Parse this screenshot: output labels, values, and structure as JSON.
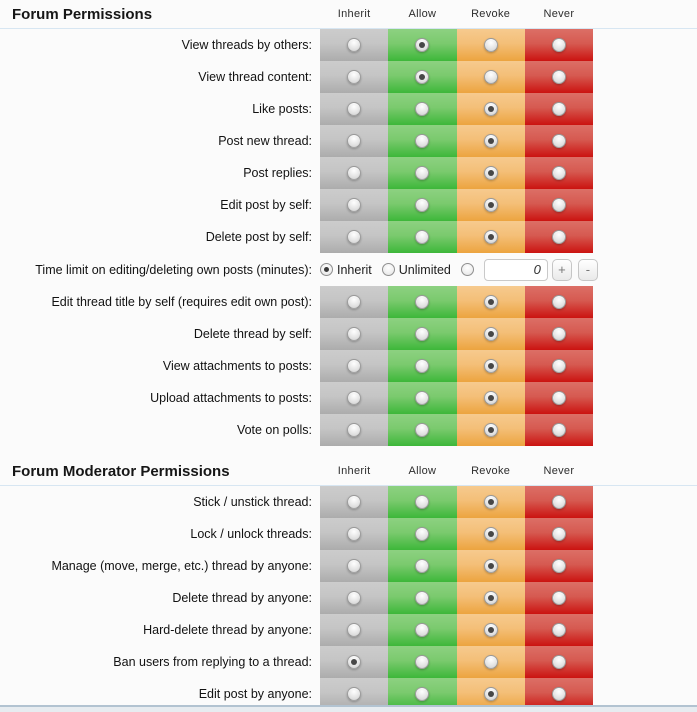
{
  "page": {
    "background": "#fbfbfb"
  },
  "columns": [
    "Inherit",
    "Allow",
    "Revoke",
    "Never"
  ],
  "column_keys": [
    "inherit",
    "allow",
    "revoke",
    "never"
  ],
  "colors": {
    "header_divider": "#d7e6f2",
    "inherit_top": "#cccccc",
    "inherit_bottom": "#acacac",
    "allow_top": "#8dd181",
    "allow_bottom": "#3db739",
    "revoke_top": "#f6ca8e",
    "revoke_bottom": "#eca43f",
    "never_top": "#dc6f66",
    "never_bottom": "#cb1310",
    "bottom_divider": "#b2c3d1"
  },
  "sections": [
    {
      "title": "Forum Permissions",
      "rows": [
        {
          "type": "radio",
          "label": "View threads by others:",
          "selected": "allow"
        },
        {
          "type": "radio",
          "label": "View thread content:",
          "selected": "allow"
        },
        {
          "type": "radio",
          "label": "Like posts:",
          "selected": "revoke"
        },
        {
          "type": "radio",
          "label": "Post new thread:",
          "selected": "revoke"
        },
        {
          "type": "radio",
          "label": "Post replies:",
          "selected": "revoke"
        },
        {
          "type": "radio",
          "label": "Edit post by self:",
          "selected": "revoke"
        },
        {
          "type": "radio",
          "label": "Delete post by self:",
          "selected": "revoke"
        },
        {
          "type": "spinner",
          "label": "Time limit on editing/deleting own posts (minutes):",
          "options": [
            {
              "label": "Inherit",
              "selected": true
            },
            {
              "label": "Unlimited",
              "selected": false
            },
            {
              "label": "",
              "selected": false
            }
          ],
          "value": "0",
          "increment_label": "+",
          "decrement_label": "-"
        },
        {
          "type": "radio",
          "label": "Edit thread title by self (requires edit own post):",
          "selected": "revoke"
        },
        {
          "type": "radio",
          "label": "Delete thread by self:",
          "selected": "revoke"
        },
        {
          "type": "radio",
          "label": "View attachments to posts:",
          "selected": "revoke"
        },
        {
          "type": "radio",
          "label": "Upload attachments to posts:",
          "selected": "revoke"
        },
        {
          "type": "radio",
          "label": "Vote on polls:",
          "selected": "revoke"
        }
      ]
    },
    {
      "title": "Forum Moderator Permissions",
      "rows": [
        {
          "type": "radio",
          "label": "Stick / unstick thread:",
          "selected": "revoke"
        },
        {
          "type": "radio",
          "label": "Lock / unlock threads:",
          "selected": "revoke"
        },
        {
          "type": "radio",
          "label": "Manage (move, merge, etc.) thread by anyone:",
          "selected": "revoke"
        },
        {
          "type": "radio",
          "label": "Delete thread by anyone:",
          "selected": "revoke"
        },
        {
          "type": "radio",
          "label": "Hard-delete thread by anyone:",
          "selected": "revoke"
        },
        {
          "type": "radio",
          "label": "Ban users from replying to a thread:",
          "selected": "inherit"
        },
        {
          "type": "radio",
          "label": "Edit post by anyone:",
          "selected": "revoke"
        }
      ]
    }
  ]
}
